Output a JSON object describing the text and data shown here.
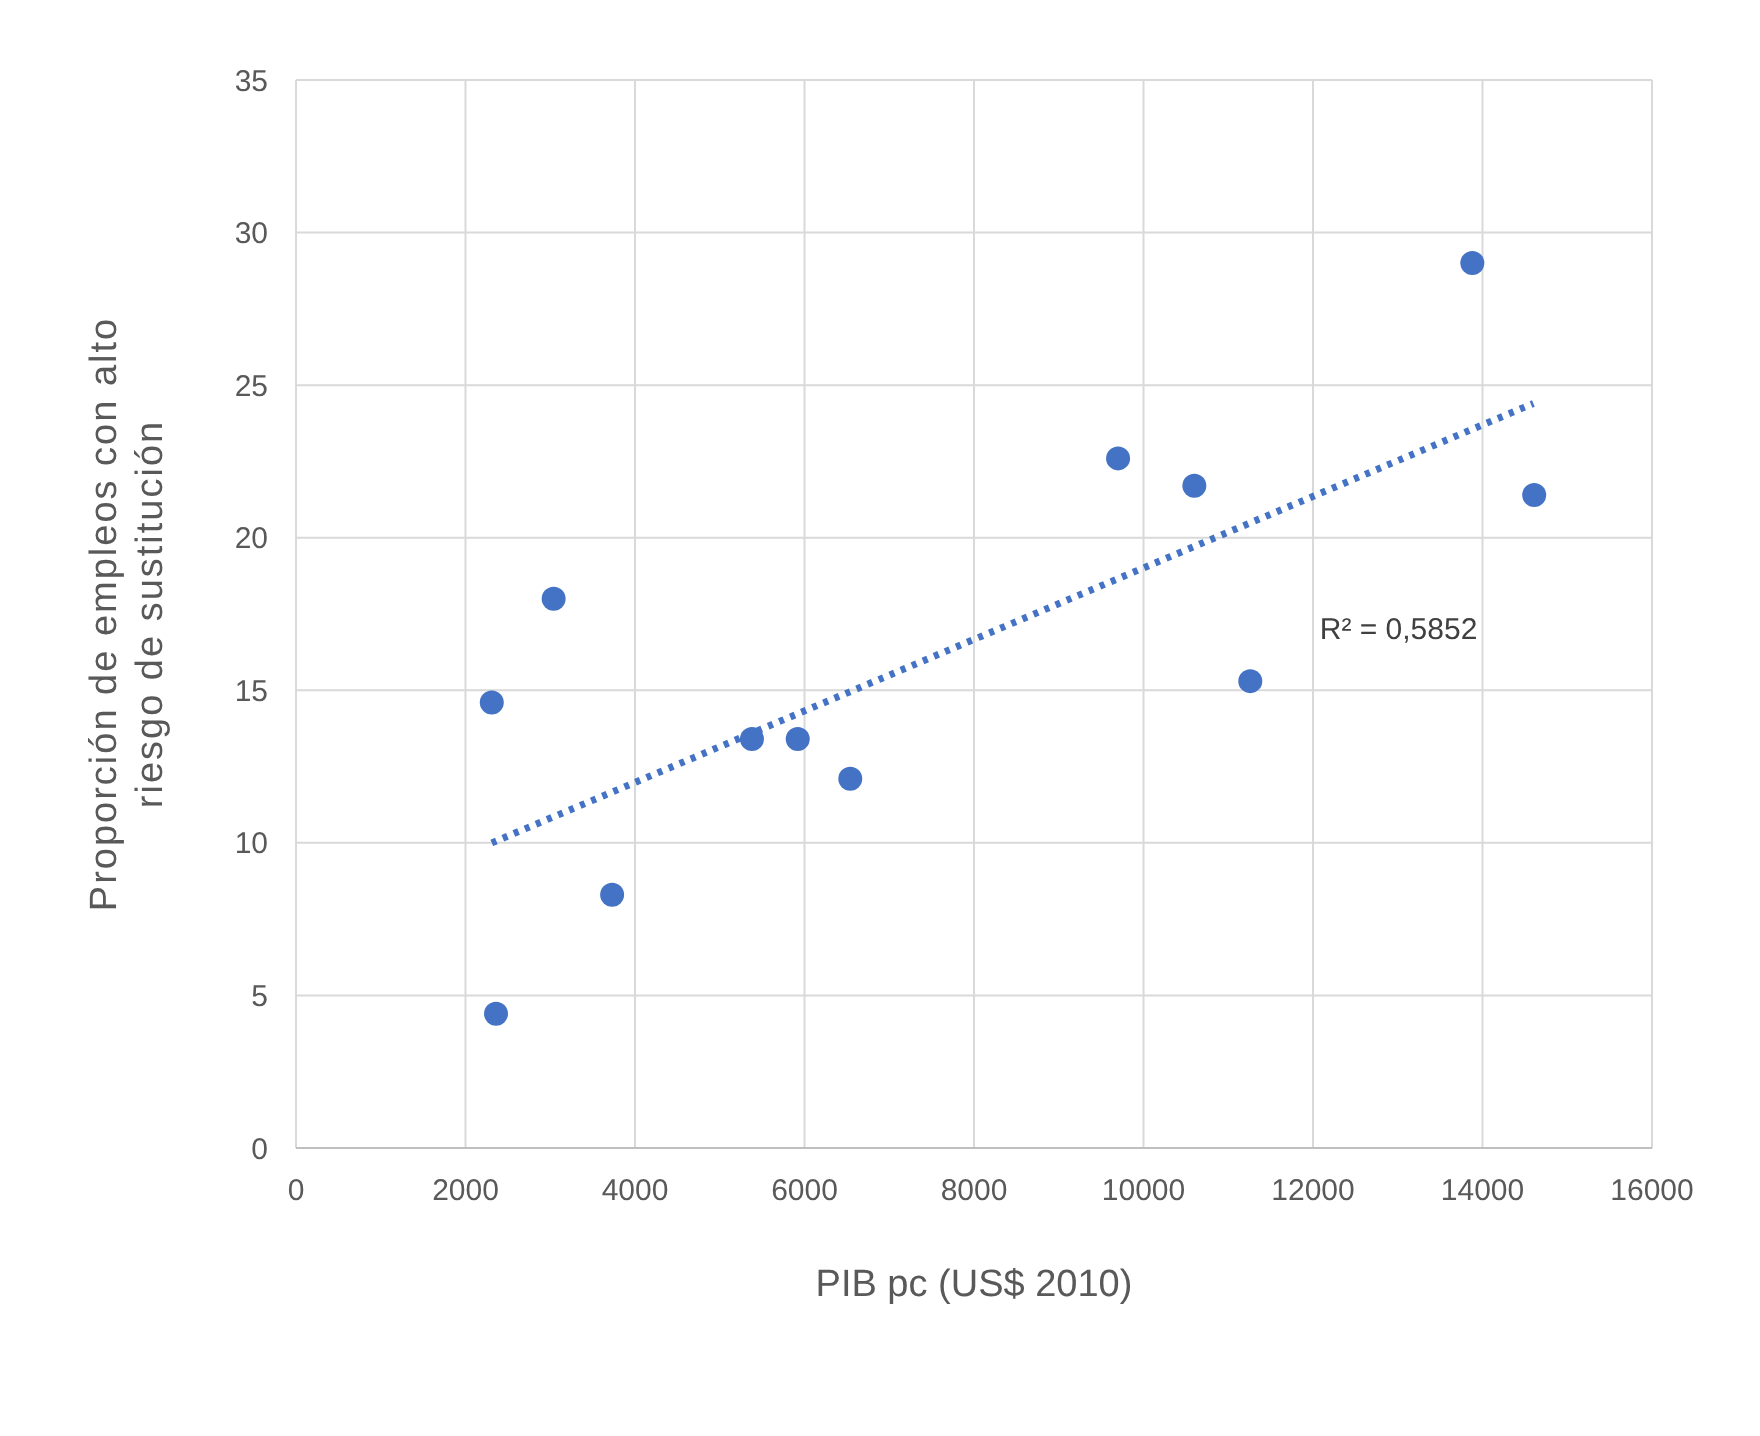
{
  "chart_data": {
    "type": "scatter",
    "xlabel": "PIB pc (US$ 2010)",
    "ylabel": "Proporción de empleos con alto riesgo de sustitución",
    "xlim": [
      0,
      16000
    ],
    "xticks": [
      0,
      2000,
      4000,
      6000,
      8000,
      10000,
      12000,
      14000,
      16000
    ],
    "ylim": [
      0,
      35
    ],
    "yticks": [
      0,
      5,
      10,
      15,
      20,
      25,
      30,
      35
    ],
    "grid": true,
    "marker": "circle",
    "series": [
      {
        "color": "#4472c4",
        "x": [
          2310,
          2360,
          3040,
          3730,
          5380,
          5920,
          6540,
          9700,
          10600,
          11260,
          13880,
          14610
        ],
        "values": [
          14.6,
          4.4,
          18.0,
          8.3,
          13.4,
          13.4,
          12.1,
          22.6,
          21.7,
          15.3,
          29.0,
          21.4
        ]
      },
      {
        "type": "line",
        "color": "#4472c4",
        "line_style": "dotted",
        "marker": "none",
        "x": [
          2310,
          14600
        ],
        "values": [
          10.0,
          24.4
        ]
      }
    ],
    "annotations": [
      "R² = 0,5852"
    ]
  }
}
